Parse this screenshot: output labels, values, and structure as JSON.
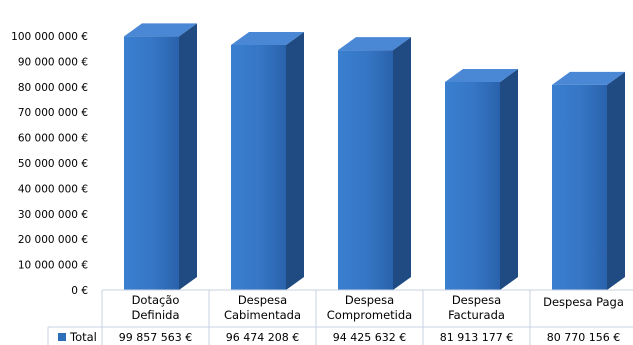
{
  "chart_data": {
    "type": "bar",
    "style": "3d-column",
    "categories": [
      [
        "Dotação",
        "Definida"
      ],
      [
        "Despesa",
        "Cabimentada"
      ],
      [
        "Despesa",
        "Comprometida"
      ],
      [
        "Despesa",
        "Facturada"
      ],
      [
        "Despesa Paga"
      ]
    ],
    "series": [
      {
        "name": "Total",
        "color": "#2E6DB8",
        "values": [
          99857563,
          96474208,
          94425632,
          81913177,
          80770156
        ],
        "labels": [
          "99 857 563 €",
          "96 474 208 €",
          "94 425 632 €",
          "81 913 177 €",
          "80 770 156 €"
        ]
      }
    ],
    "ylim": [
      0,
      100000000
    ],
    "yticks": [
      0,
      10000000,
      20000000,
      30000000,
      40000000,
      50000000,
      60000000,
      70000000,
      80000000,
      90000000,
      100000000
    ],
    "ytick_labels": [
      "0 €",
      "10 000 000 €",
      "20 000 000 €",
      "30 000 000 €",
      "40 000 000 €",
      "50 000 000 €",
      "60 000 000 €",
      "70 000 000 €",
      "80 000 000 €",
      "90 000 000 €",
      "100 000 000 €"
    ],
    "grid": false,
    "legend": "data-table",
    "title": "",
    "xlabel": "",
    "ylabel": ""
  }
}
